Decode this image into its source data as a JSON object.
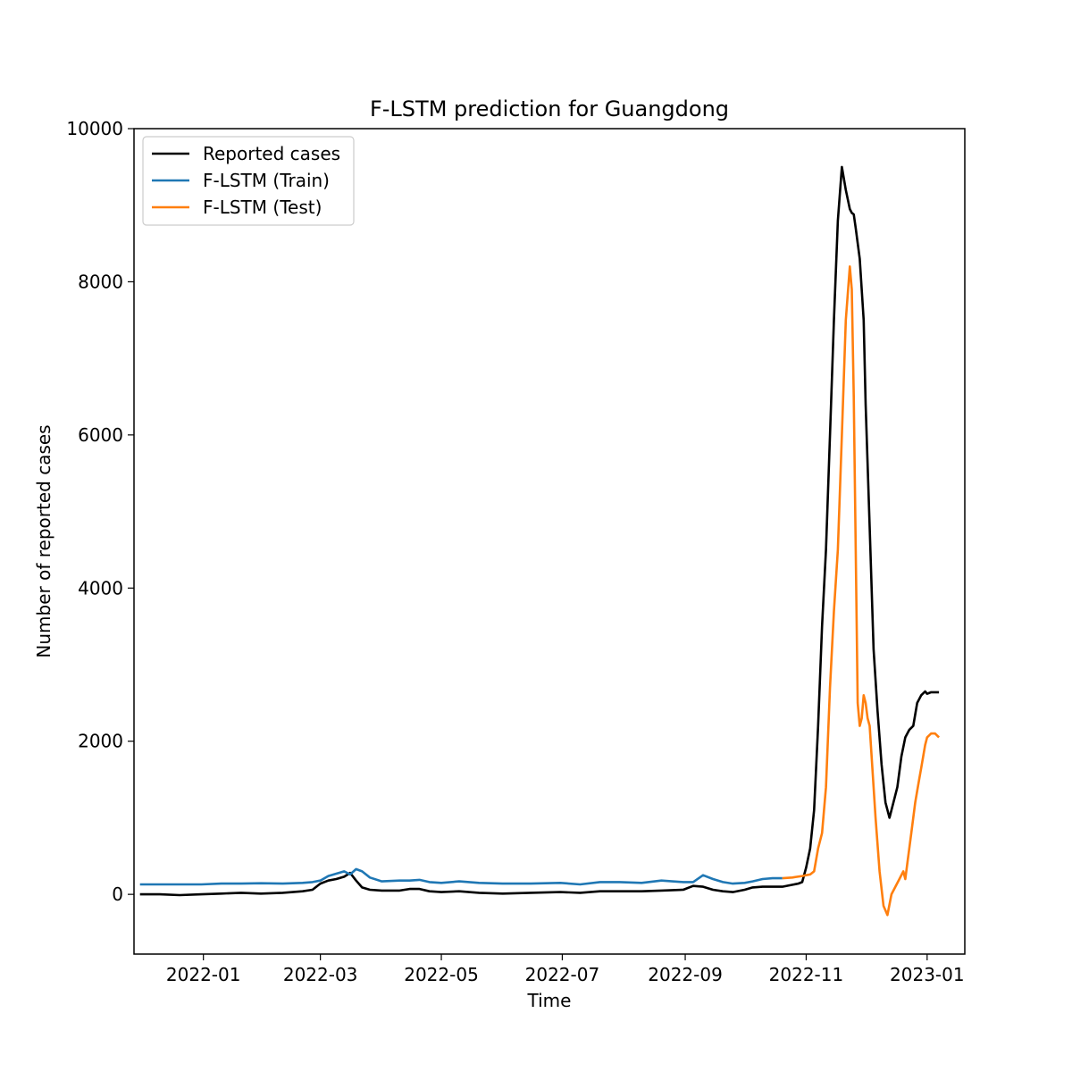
{
  "chart_data": {
    "type": "line",
    "title": "F-LSTM prediction for Guangdong",
    "xlabel": "Time",
    "ylabel": "Number of reported cases",
    "xlim": [
      "2021-11-27",
      "2023-01-20"
    ],
    "ylim": [
      -780,
      10000
    ],
    "x_ticks": [
      "2022-01",
      "2022-03",
      "2022-05",
      "2022-07",
      "2022-09",
      "2022-11",
      "2023-01"
    ],
    "y_ticks": [
      0,
      2000,
      4000,
      6000,
      8000,
      10000
    ],
    "legend_position": "top-left",
    "grid": false,
    "series": [
      {
        "name": "Reported cases",
        "color": "#000000",
        "x": [
          "2021-11-30",
          "2021-12-10",
          "2021-12-20",
          "2021-12-31",
          "2022-01-10",
          "2022-01-20",
          "2022-01-30",
          "2022-02-10",
          "2022-02-20",
          "2022-02-25",
          "2022-03-01",
          "2022-03-05",
          "2022-03-09",
          "2022-03-13",
          "2022-03-16",
          "2022-03-19",
          "2022-03-22",
          "2022-03-26",
          "2022-04-01",
          "2022-04-10",
          "2022-04-15",
          "2022-04-20",
          "2022-04-25",
          "2022-05-01",
          "2022-05-10",
          "2022-05-20",
          "2022-06-01",
          "2022-06-15",
          "2022-06-30",
          "2022-07-10",
          "2022-07-20",
          "2022-07-30",
          "2022-08-10",
          "2022-08-20",
          "2022-08-31",
          "2022-09-05",
          "2022-09-10",
          "2022-09-15",
          "2022-09-20",
          "2022-09-25",
          "2022-10-01",
          "2022-10-05",
          "2022-10-10",
          "2022-10-20",
          "2022-10-28",
          "2022-10-30",
          "2022-11-01",
          "2022-11-03",
          "2022-11-05",
          "2022-11-07",
          "2022-11-09",
          "2022-11-11",
          "2022-11-13",
          "2022-11-15",
          "2022-11-17",
          "2022-11-19",
          "2022-11-21",
          "2022-11-23",
          "2022-11-24",
          "2022-11-25",
          "2022-11-26",
          "2022-11-28",
          "2022-11-30",
          "2022-12-01",
          "2022-12-03",
          "2022-12-05",
          "2022-12-07",
          "2022-12-09",
          "2022-12-11",
          "2022-12-13",
          "2022-12-15",
          "2022-12-17",
          "2022-12-19",
          "2022-12-21",
          "2022-12-23",
          "2022-12-25",
          "2022-12-27",
          "2022-12-29",
          "2022-12-31",
          "2023-01-01",
          "2023-01-03",
          "2023-01-05",
          "2023-01-07"
        ],
        "y": [
          0,
          0,
          -10,
          0,
          10,
          20,
          10,
          20,
          40,
          60,
          140,
          180,
          200,
          230,
          280,
          180,
          90,
          60,
          50,
          50,
          70,
          70,
          40,
          30,
          40,
          20,
          10,
          20,
          30,
          20,
          40,
          40,
          40,
          50,
          60,
          110,
          100,
          60,
          40,
          30,
          60,
          90,
          100,
          100,
          140,
          160,
          350,
          600,
          1100,
          2200,
          3500,
          4500,
          6000,
          7500,
          8800,
          9500,
          9200,
          8950,
          8900,
          8880,
          8700,
          8300,
          7500,
          6400,
          4800,
          3200,
          2400,
          1700,
          1200,
          1000,
          1200,
          1400,
          1800,
          2050,
          2150,
          2200,
          2500,
          2600,
          2650,
          2620,
          2640,
          2640,
          2640
        ]
      },
      {
        "name": "F-LSTM (Train)",
        "color": "#1f77b4",
        "x": [
          "2021-11-30",
          "2021-12-10",
          "2021-12-20",
          "2021-12-31",
          "2022-01-10",
          "2022-01-20",
          "2022-01-30",
          "2022-02-10",
          "2022-02-20",
          "2022-02-25",
          "2022-03-01",
          "2022-03-05",
          "2022-03-09",
          "2022-03-13",
          "2022-03-16",
          "2022-03-19",
          "2022-03-22",
          "2022-03-26",
          "2022-04-01",
          "2022-04-10",
          "2022-04-15",
          "2022-04-20",
          "2022-04-25",
          "2022-05-01",
          "2022-05-10",
          "2022-05-20",
          "2022-06-01",
          "2022-06-15",
          "2022-06-30",
          "2022-07-10",
          "2022-07-20",
          "2022-07-30",
          "2022-08-10",
          "2022-08-20",
          "2022-08-31",
          "2022-09-05",
          "2022-09-10",
          "2022-09-15",
          "2022-09-20",
          "2022-09-25",
          "2022-10-01",
          "2022-10-05",
          "2022-10-10",
          "2022-10-15",
          "2022-10-20"
        ],
        "y": [
          130,
          130,
          130,
          130,
          140,
          140,
          145,
          140,
          150,
          160,
          180,
          240,
          270,
          300,
          260,
          330,
          300,
          220,
          170,
          180,
          180,
          190,
          160,
          150,
          170,
          150,
          140,
          140,
          150,
          130,
          160,
          160,
          150,
          180,
          160,
          160,
          250,
          200,
          160,
          140,
          150,
          170,
          200,
          210,
          210
        ]
      },
      {
        "name": "F-LSTM (Test)",
        "color": "#ff7f0e",
        "x": [
          "2022-10-20",
          "2022-10-25",
          "2022-10-30",
          "2022-11-01",
          "2022-11-03",
          "2022-11-05",
          "2022-11-07",
          "2022-11-09",
          "2022-11-11",
          "2022-11-13",
          "2022-11-15",
          "2022-11-17",
          "2022-11-19",
          "2022-11-21",
          "2022-11-23",
          "2022-11-24",
          "2022-11-25",
          "2022-11-26",
          "2022-11-27",
          "2022-11-28",
          "2022-11-29",
          "2022-11-30",
          "2022-12-01",
          "2022-12-02",
          "2022-12-03",
          "2022-12-04",
          "2022-12-05",
          "2022-12-06",
          "2022-12-08",
          "2022-12-10",
          "2022-12-12",
          "2022-12-14",
          "2022-12-16",
          "2022-12-18",
          "2022-12-20",
          "2022-12-21",
          "2022-12-22",
          "2022-12-24",
          "2022-12-26",
          "2022-12-27",
          "2022-12-28",
          "2022-12-29",
          "2022-12-30",
          "2022-12-31",
          "2023-01-01",
          "2023-01-03",
          "2023-01-05",
          "2023-01-07"
        ],
        "y": [
          210,
          220,
          240,
          250,
          260,
          300,
          600,
          800,
          1400,
          2700,
          3700,
          4500,
          6000,
          7500,
          8200,
          7900,
          6500,
          4500,
          2500,
          2200,
          2300,
          2600,
          2500,
          2300,
          2200,
          1800,
          1400,
          1000,
          300,
          -150,
          -270,
          0,
          100,
          200,
          300,
          200,
          400,
          800,
          1200,
          1350,
          1500,
          1650,
          1800,
          1950,
          2050,
          2100,
          2100,
          2050
        ]
      }
    ]
  }
}
